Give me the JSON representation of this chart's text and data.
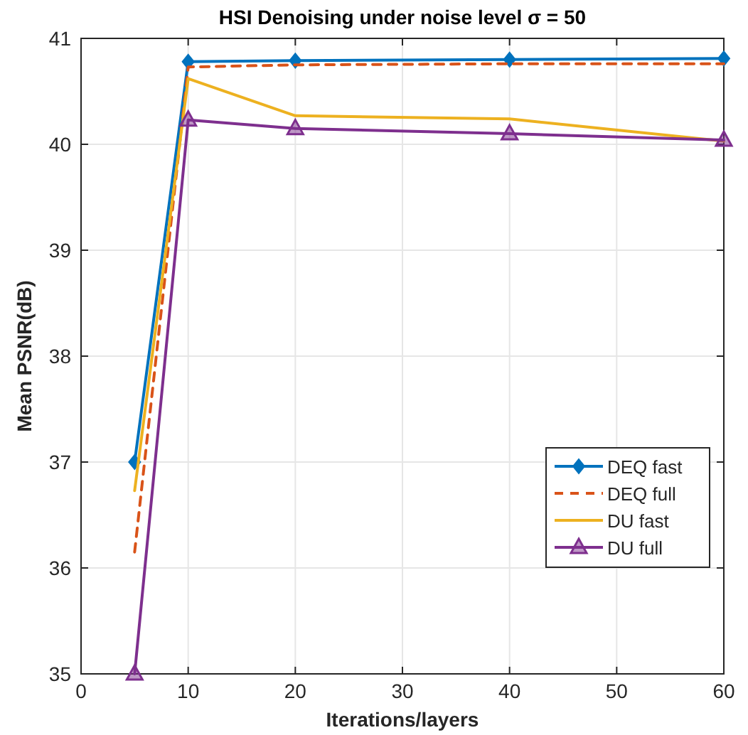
{
  "chart_data": {
    "type": "line",
    "title": "HSI Denoising under noise level σ = 50",
    "xlabel": "Iterations/layers",
    "ylabel": "Mean PSNR(dB)",
    "x": [
      5,
      10,
      20,
      40,
      60
    ],
    "xlim": [
      0,
      60
    ],
    "xticks": [
      0,
      10,
      20,
      30,
      40,
      50,
      60
    ],
    "ylim": [
      35,
      41
    ],
    "yticks": [
      35,
      36,
      37,
      38,
      39,
      40,
      41
    ],
    "grid": true,
    "legend": "bottom right",
    "series": [
      {
        "name": "DEQ fast",
        "color": "#0072bd",
        "marker": "diamond",
        "line_style": "solid",
        "values": [
          37.0,
          40.78,
          40.79,
          40.8,
          40.81
        ]
      },
      {
        "name": "DEQ full",
        "color": "#d95319",
        "marker": "none",
        "line_style": "dashed",
        "values": [
          36.15,
          40.73,
          40.75,
          40.76,
          40.76
        ]
      },
      {
        "name": "DU fast",
        "color": "#edb120",
        "marker": "none",
        "line_style": "solid",
        "values": [
          36.73,
          40.62,
          40.27,
          40.24,
          40.03
        ]
      },
      {
        "name": "DU full",
        "color": "#7e2f8e",
        "marker": "triangle",
        "line_style": "solid",
        "values": [
          35.0,
          40.23,
          40.15,
          40.1,
          40.04
        ]
      }
    ]
  }
}
